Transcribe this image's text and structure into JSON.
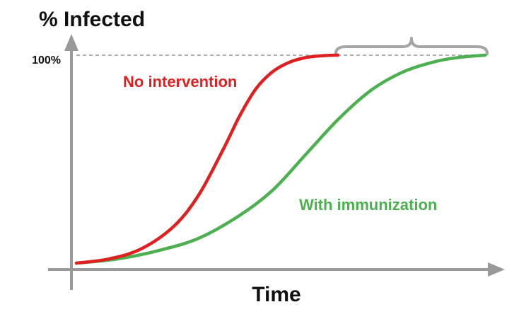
{
  "chart_data": {
    "type": "line",
    "ylabel": "% Infected",
    "xlabel": "Time",
    "x_tick_labels": [],
    "y_tick_labels": [
      "100%"
    ],
    "ylim": [
      0,
      100
    ],
    "xlim": [
      0,
      100
    ],
    "reference_line": {
      "y": 100,
      "style": "dashed"
    },
    "annotation": {
      "type": "brace",
      "from_x": 64,
      "to_x": 100,
      "y": 100
    },
    "series": [
      {
        "name": "No intervention",
        "color": "#e02020",
        "x": [
          0,
          8,
          16,
          24,
          30,
          36,
          40,
          44,
          48,
          52,
          56,
          60,
          64
        ],
        "y": [
          0,
          2,
          7,
          18,
          33,
          55,
          71,
          84,
          92,
          96.5,
          98.8,
          99.7,
          100
        ]
      },
      {
        "name": "With immunization",
        "color": "#4caf50",
        "x": [
          0,
          10,
          20,
          30,
          40,
          48,
          56,
          64,
          72,
          80,
          88,
          94,
          100
        ],
        "y": [
          0,
          2,
          6,
          12,
          23,
          35,
          52,
          69,
          83,
          92,
          97,
          99,
          100
        ]
      }
    ],
    "colors": {
      "axis": "#999999",
      "reference": "#999999",
      "brace": "#a6a6a6",
      "text": "#111111"
    }
  }
}
